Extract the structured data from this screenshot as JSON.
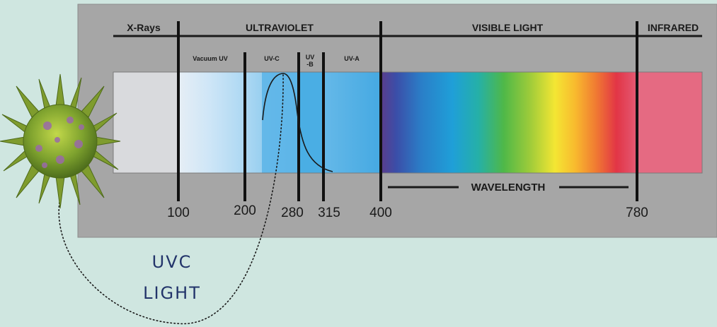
{
  "top_labels": {
    "xrays": "X-Rays",
    "ultraviolet": "ULTRAVIOLET",
    "visible": "VISIBLE LIGHT",
    "infrared": "INFRARED"
  },
  "sub_labels": {
    "vacuum_uv": "Vacuum UV",
    "uvc": "UV-C",
    "uvb_line1": "UV",
    "uvb_line2": "-B",
    "uva": "UV-A"
  },
  "ticks": [
    "100",
    "200",
    "280",
    "315",
    "400",
    "780"
  ],
  "wavelength_label": "WAVELENGTH",
  "callout": {
    "line1": "UVC",
    "line2": "LIGHT"
  },
  "colors": {
    "background": "#cfe6e0",
    "panel": "#a6a6a6",
    "xray_band": "#d9dadd",
    "uv_band": "#58b3e6",
    "infrared_band": "#e56a82",
    "callout_text": "#22346a"
  }
}
